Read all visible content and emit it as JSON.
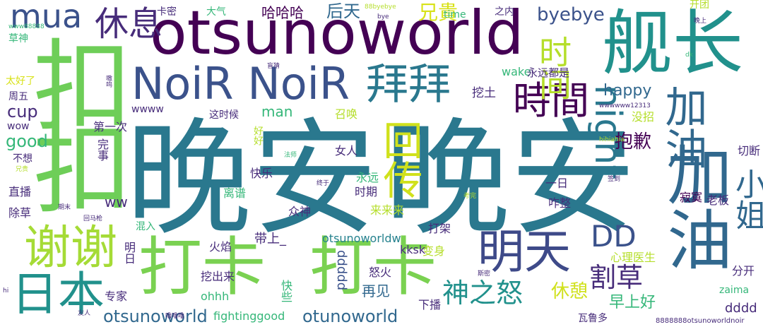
{
  "palette": {
    "dark_purple": "#440154",
    "purple": "#472c7a",
    "indigo": "#3b528b",
    "blue": "#31688e",
    "teal": "#26828e",
    "green": "#35b779",
    "lime": "#6ece58",
    "light_lime": "#b5de2b",
    "yellow": "#d8e219"
  },
  "words": {
    "wan_an_1": "晚安",
    "wan_an_2": "晚安",
    "otsunoworld_big": "otsunoworld",
    "noir_noir": "NoiR NoiR",
    "jian_zhang": "舰长",
    "kou_1": "扣",
    "kou_2": "扣",
    "da_ka_1": "打卡",
    "da_ka_2": "打卡",
    "jia_you_1": "加油",
    "jia_you_2": "加油",
    "xie_xie": "谢谢",
    "ri_ben": "日本",
    "ming_tian": "明天",
    "bai_bai": "拜拜",
    "hui_chuan": "回传",
    "shi_jian_trad": "時間",
    "night": "night",
    "mua": "mua",
    "xiu_xi": "休息",
    "shi_jian": "时间",
    "xiao_jie": "小姐",
    "dd": "DD",
    "ge_cao": "割草",
    "shen_zhi_nu": "神之怒",
    "otsunoworld_small": "otsunoworld",
    "otunoworld": "otunoworld",
    "byebye": "byebye",
    "happy": "happy",
    "good": "good",
    "cup": "cup",
    "bao_qian": "抱歉",
    "hou_tian": "后天",
    "xiong_gui": "兄貴",
    "ha_ha_ha": "哈哈哈",
    "man": "man",
    "xiu_qi": "休憩",
    "zao_shang_hao": "早上好",
    "zai_jian": "再见",
    "fightinggood": "fightinggood",
    "dddd": "dddd",
    "ddddd": "ddddd",
    "kksk": "kksk",
    "otsunoworldw": "otsunoworldw",
    "ww": "ww",
    "wake": "wake",
    "yong_yuan_dou_shi": "永远都是",
    "wa_tu": "挖土",
    "mei_you_zhao": "没招",
    "xin_li_yi_sheng": "心理医生",
    "ji_mo": "寂寞",
    "lao_ban": "老板",
    "qie_duan": "切断",
    "fen_kai": "分开",
    "zha_zheng": "咋整",
    "yi_ri": "一日",
    "da_jia": "打架",
    "nu_huo": "怒火",
    "bian_shen": "变身",
    "xia_bo": "下播",
    "wa_lu_duo": "瓦鲁多",
    "zaima": "zaima",
    "ohhh": "ohhh",
    "zhuan_jia": "专家",
    "kuai_le": "快乐",
    "li_pu": "离谱",
    "zhong_shen": "众神",
    "lai_lai_lai": "来来来",
    "dai_shang": "带上_",
    "huo_yan": "火焰",
    "wa_chu_lai": "挖出来",
    "kuai_xie": "快些",
    "hun_ru": "混入",
    "ming_ri": "明日",
    "zhi_bo": "直播",
    "chu_cao": "除草",
    "bu_xiang": "不想",
    "di_yi_ci": "第一次",
    "wan_shen": "完事",
    "hao_hao": "好好",
    "nv_ren": "女人",
    "zhao_huan": "召唤",
    "yong_yuan": "永远",
    "shi_qi": "时期",
    "zhe_shi_hou": "这时候",
    "wwww": "wwww",
    "wow": "wow",
    "zhou_wu": "周五",
    "tai_hao_le": "太好了",
    "cao_shen": "草神",
    "www88888": "www88888",
    "ka_mi": "卡密",
    "da_qi": "大气",
    "88byebye": "88byebye",
    "bye": "bye",
    "time": "time",
    "zhi_nei": "之内",
    "kai_tuan": "开团",
    "wan_shang": "晚上",
    "dk": "dk",
    "mang_cai": "盲猜",
    "ao_ao": "嗷呜",
    "wwwwww12313": "wwwwww12313",
    "hihiahia": "hihiahia",
    "fa_shi": "法师",
    "zhong_yu": "终于",
    "qian_dao": "签到",
    "kao_wan": "考完",
    "qi_mo": "期末",
    "hui_ma_qiang": "回马枪",
    "xiong_gui_small": "兄贵",
    "lu_lu_lu": "噜噜噜",
    "si_mi": "斯密",
    "hi": "hi",
    "you_ren": "友人",
    "otsunoworldnoir": "8888888otsunoworldnoir"
  }
}
